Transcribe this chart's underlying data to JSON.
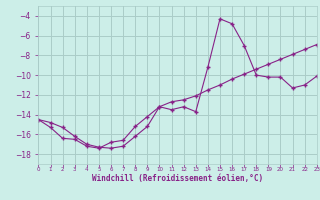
{
  "xlabel": "Windchill (Refroidissement éolien,°C)",
  "background_color": "#cceee8",
  "grid_color": "#aaccc8",
  "line_color": "#882288",
  "ylim": [
    -19,
    -3
  ],
  "xlim": [
    0,
    23
  ],
  "yticks": [
    -18,
    -16,
    -14,
    -12,
    -10,
    -8,
    -6,
    -4
  ],
  "xtick_labels": [
    "0",
    "1",
    "2",
    "3",
    "4",
    "5",
    "6",
    "7",
    "8",
    "9",
    "10",
    "11",
    "12",
    "13",
    "14",
    "15",
    "16",
    "17",
    "18",
    "19",
    "20",
    "21",
    "22",
    "23"
  ],
  "hours": [
    0,
    1,
    2,
    3,
    4,
    5,
    6,
    7,
    8,
    9,
    10,
    11,
    12,
    13,
    14,
    15,
    16,
    17,
    18,
    19,
    20,
    21,
    22,
    23
  ],
  "line1": [
    -14.5,
    -14.8,
    -15.3,
    -16.2,
    -17.0,
    -17.3,
    -17.4,
    -17.2,
    -16.2,
    -15.2,
    -13.2,
    -13.5,
    -13.2,
    -13.7,
    -9.2,
    -4.3,
    -4.8,
    -7.0,
    -10.0,
    -10.2,
    -10.2,
    -11.3,
    -11.0,
    -10.1
  ],
  "line2": [
    -14.5,
    -15.3,
    -16.4,
    -16.5,
    -17.2,
    -17.4,
    -16.8,
    -16.6,
    -15.2,
    -14.2,
    -13.2,
    -12.7,
    -12.5,
    -12.1,
    -11.5,
    -11.0,
    -10.4,
    -9.9,
    -9.4,
    -8.9,
    -8.4,
    -7.9,
    -7.4,
    -6.9
  ]
}
